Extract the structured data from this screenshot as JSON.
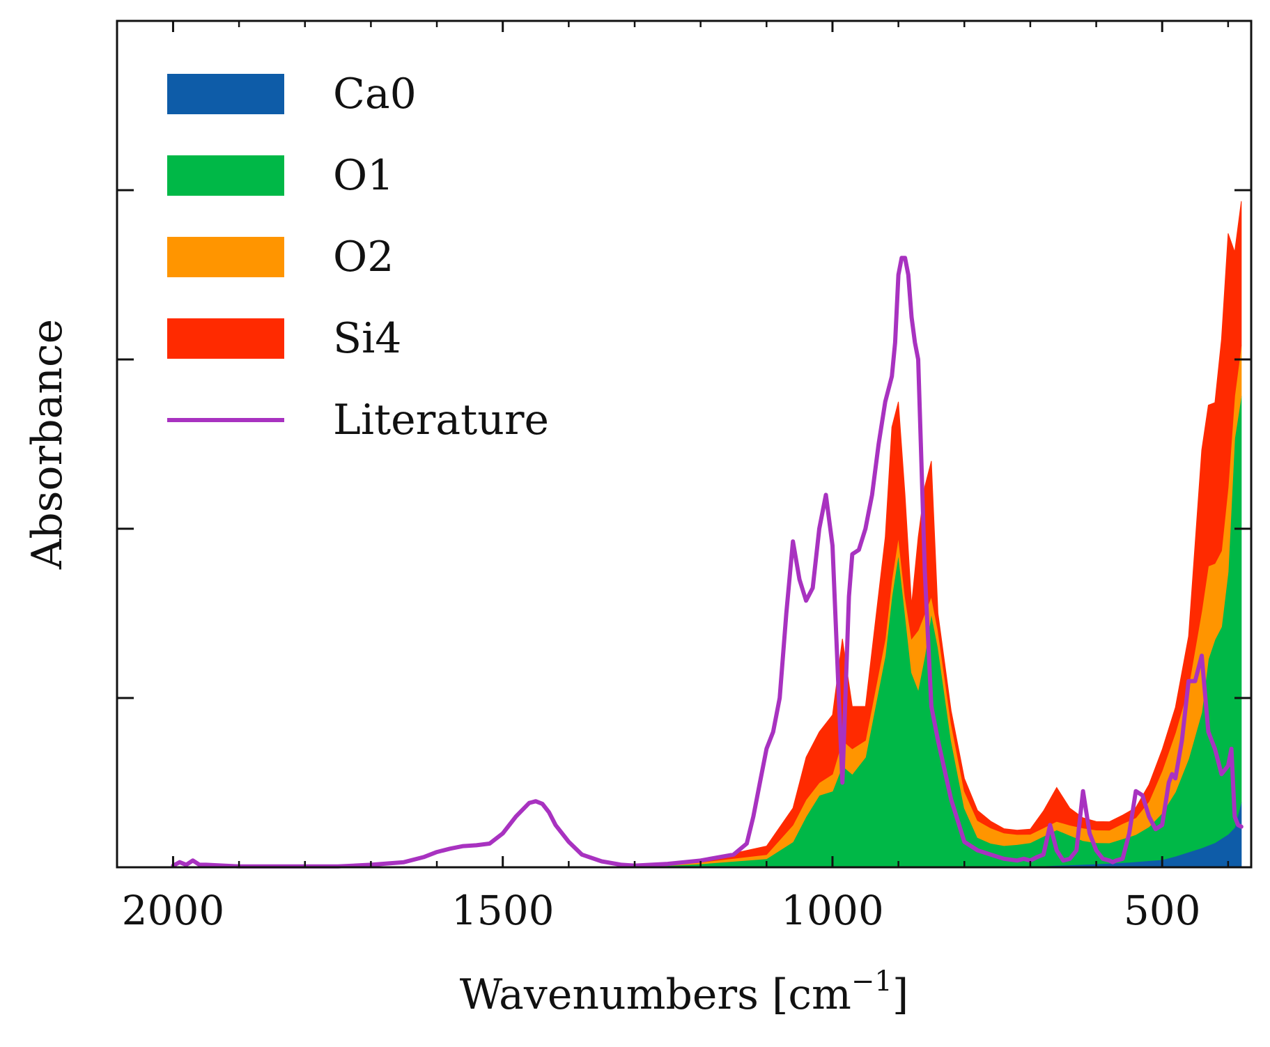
{
  "chart_data": {
    "type": "area",
    "title": "",
    "xlabel": "Wavenumbers [cm",
    "xlabel_sup": "−1",
    "xlabel_close": "]",
    "ylabel": "Absorbance",
    "xlim": [
      2085,
      365
    ],
    "ylim": [
      0,
      1.0
    ],
    "x_inverted": true,
    "x_ticks": [
      2000,
      1500,
      1000,
      500
    ],
    "x_tick_labels": [
      "2000",
      "1500",
      "1000",
      "500"
    ],
    "y_ticks": [
      0.2,
      0.4,
      0.6,
      0.8
    ],
    "y_tick_labels_visible": false,
    "grid": false,
    "legend_position": "top-left",
    "colors": {
      "Ca0": "#0e5ca8",
      "O1": "#00b847",
      "O2": "#ff9500",
      "Si4": "#ff2a00",
      "Literature": "#a832c0"
    },
    "stacked_series": [
      {
        "name": "Ca0",
        "x": [
          1300,
          1100,
          900,
          800,
          700,
          600,
          550,
          500,
          480,
          460,
          440,
          420,
          400,
          390,
          380
        ],
        "values": [
          0,
          0,
          0,
          0,
          0.001,
          0.004,
          0.006,
          0.009,
          0.013,
          0.018,
          0.023,
          0.029,
          0.039,
          0.047,
          0.077
        ]
      },
      {
        "name": "O1",
        "x": [
          1300,
          1200,
          1100,
          1060,
          1040,
          1020,
          1000,
          985,
          970,
          950,
          920,
          910,
          900,
          890,
          880,
          870,
          860,
          850,
          840,
          820,
          800,
          780,
          760,
          740,
          720,
          700,
          680,
          660,
          640,
          620,
          600,
          580,
          560,
          540,
          520,
          500,
          480,
          460,
          440,
          430,
          420,
          410,
          400,
          390,
          380
        ],
        "values": [
          0,
          0.004,
          0.01,
          0.03,
          0.06,
          0.085,
          0.09,
          0.12,
          0.11,
          0.13,
          0.25,
          0.32,
          0.37,
          0.3,
          0.23,
          0.21,
          0.25,
          0.3,
          0.26,
          0.15,
          0.07,
          0.035,
          0.028,
          0.025,
          0.026,
          0.028,
          0.035,
          0.042,
          0.035,
          0.028,
          0.025,
          0.024,
          0.028,
          0.032,
          0.04,
          0.055,
          0.076,
          0.11,
          0.16,
          0.22,
          0.24,
          0.25,
          0.31,
          0.46,
          0.48
        ]
      },
      {
        "name": "O2",
        "x": [
          1300,
          1200,
          1100,
          1060,
          1040,
          1020,
          1000,
          985,
          970,
          950,
          920,
          910,
          900,
          890,
          880,
          870,
          860,
          850,
          840,
          820,
          800,
          780,
          760,
          740,
          720,
          700,
          680,
          660,
          640,
          620,
          600,
          580,
          560,
          540,
          520,
          500,
          480,
          460,
          440,
          430,
          420,
          410,
          400,
          390,
          380
        ],
        "values": [
          0,
          0.002,
          0.005,
          0.02,
          0.02,
          0.015,
          0.02,
          0.03,
          0.03,
          0.02,
          0.02,
          0.02,
          0.02,
          0.02,
          0.04,
          0.07,
          0.05,
          0.02,
          0.02,
          0.02,
          0.02,
          0.02,
          0.018,
          0.015,
          0.012,
          0.01,
          0.01,
          0.01,
          0.012,
          0.015,
          0.015,
          0.015,
          0.018,
          0.02,
          0.03,
          0.05,
          0.07,
          0.085,
          0.12,
          0.11,
          0.09,
          0.09,
          0.1,
          0.05,
          0.06
        ]
      },
      {
        "name": "Si4",
        "x": [
          1300,
          1200,
          1100,
          1060,
          1040,
          1020,
          1000,
          985,
          970,
          950,
          920,
          910,
          900,
          890,
          880,
          870,
          860,
          850,
          840,
          820,
          800,
          780,
          760,
          740,
          720,
          700,
          680,
          660,
          640,
          620,
          600,
          580,
          560,
          540,
          520,
          500,
          480,
          460,
          440,
          430,
          420,
          410,
          400,
          390,
          380
        ],
        "values": [
          0,
          0.002,
          0.01,
          0.02,
          0.05,
          0.06,
          0.07,
          0.12,
          0.05,
          0.04,
          0.12,
          0.18,
          0.16,
          0.12,
          0.04,
          0.11,
          0.15,
          0.16,
          0.02,
          0.015,
          0.015,
          0.012,
          0.008,
          0.005,
          0.005,
          0.006,
          0.02,
          0.04,
          0.02,
          0.012,
          0.01,
          0.01,
          0.01,
          0.012,
          0.02,
          0.025,
          0.03,
          0.06,
          0.19,
          0.19,
          0.19,
          0.25,
          0.3,
          0.17,
          0.17
        ]
      }
    ],
    "line_series": [
      {
        "name": "Literature",
        "x": [
          2000,
          1990,
          1980,
          1970,
          1960,
          1950,
          1900,
          1850,
          1800,
          1750,
          1700,
          1650,
          1620,
          1600,
          1580,
          1560,
          1540,
          1520,
          1500,
          1480,
          1460,
          1450,
          1440,
          1430,
          1420,
          1400,
          1380,
          1350,
          1320,
          1300,
          1250,
          1200,
          1150,
          1130,
          1120,
          1110,
          1100,
          1090,
          1080,
          1070,
          1060,
          1050,
          1040,
          1030,
          1020,
          1010,
          1000,
          985,
          975,
          970,
          960,
          950,
          945,
          940,
          930,
          920,
          910,
          905,
          900,
          895,
          890,
          885,
          880,
          875,
          870,
          860,
          850,
          840,
          820,
          800,
          780,
          760,
          740,
          720,
          710,
          700,
          690,
          680,
          670,
          660,
          650,
          640,
          630,
          620,
          610,
          600,
          590,
          580,
          575,
          570,
          560,
          550,
          540,
          530,
          520,
          510,
          500,
          490,
          485,
          480,
          470,
          460,
          450,
          440,
          430,
          420,
          410,
          400,
          395,
          390,
          385,
          380
        ],
        "values": [
          0.002,
          0.006,
          0.003,
          0.008,
          0.003,
          0.003,
          0.001,
          0.001,
          0.001,
          0.001,
          0.003,
          0.006,
          0.012,
          0.018,
          0.022,
          0.025,
          0.026,
          0.028,
          0.04,
          0.06,
          0.076,
          0.078,
          0.075,
          0.065,
          0.05,
          0.03,
          0.015,
          0.007,
          0.003,
          0.002,
          0.004,
          0.008,
          0.015,
          0.028,
          0.06,
          0.1,
          0.14,
          0.16,
          0.2,
          0.3,
          0.385,
          0.34,
          0.315,
          0.33,
          0.4,
          0.44,
          0.38,
          0.1,
          0.32,
          0.37,
          0.375,
          0.4,
          0.42,
          0.44,
          0.5,
          0.55,
          0.58,
          0.62,
          0.7,
          0.72,
          0.72,
          0.7,
          0.65,
          0.62,
          0.6,
          0.35,
          0.19,
          0.15,
          0.08,
          0.03,
          0.02,
          0.015,
          0.01,
          0.008,
          0.01,
          0.008,
          0.012,
          0.015,
          0.05,
          0.02,
          0.008,
          0.01,
          0.02,
          0.09,
          0.04,
          0.02,
          0.01,
          0.008,
          0.006,
          0.008,
          0.01,
          0.04,
          0.09,
          0.085,
          0.06,
          0.045,
          0.05,
          0.1,
          0.11,
          0.105,
          0.15,
          0.22,
          0.22,
          0.25,
          0.16,
          0.14,
          0.11,
          0.12,
          0.14,
          0.06,
          0.05,
          0.048
        ]
      }
    ],
    "legend": [
      {
        "name": "Ca0",
        "kind": "patch"
      },
      {
        "name": "O1",
        "kind": "patch"
      },
      {
        "name": "O2",
        "kind": "patch"
      },
      {
        "name": "Si4",
        "kind": "patch"
      },
      {
        "name": "Literature",
        "kind": "line"
      }
    ]
  }
}
